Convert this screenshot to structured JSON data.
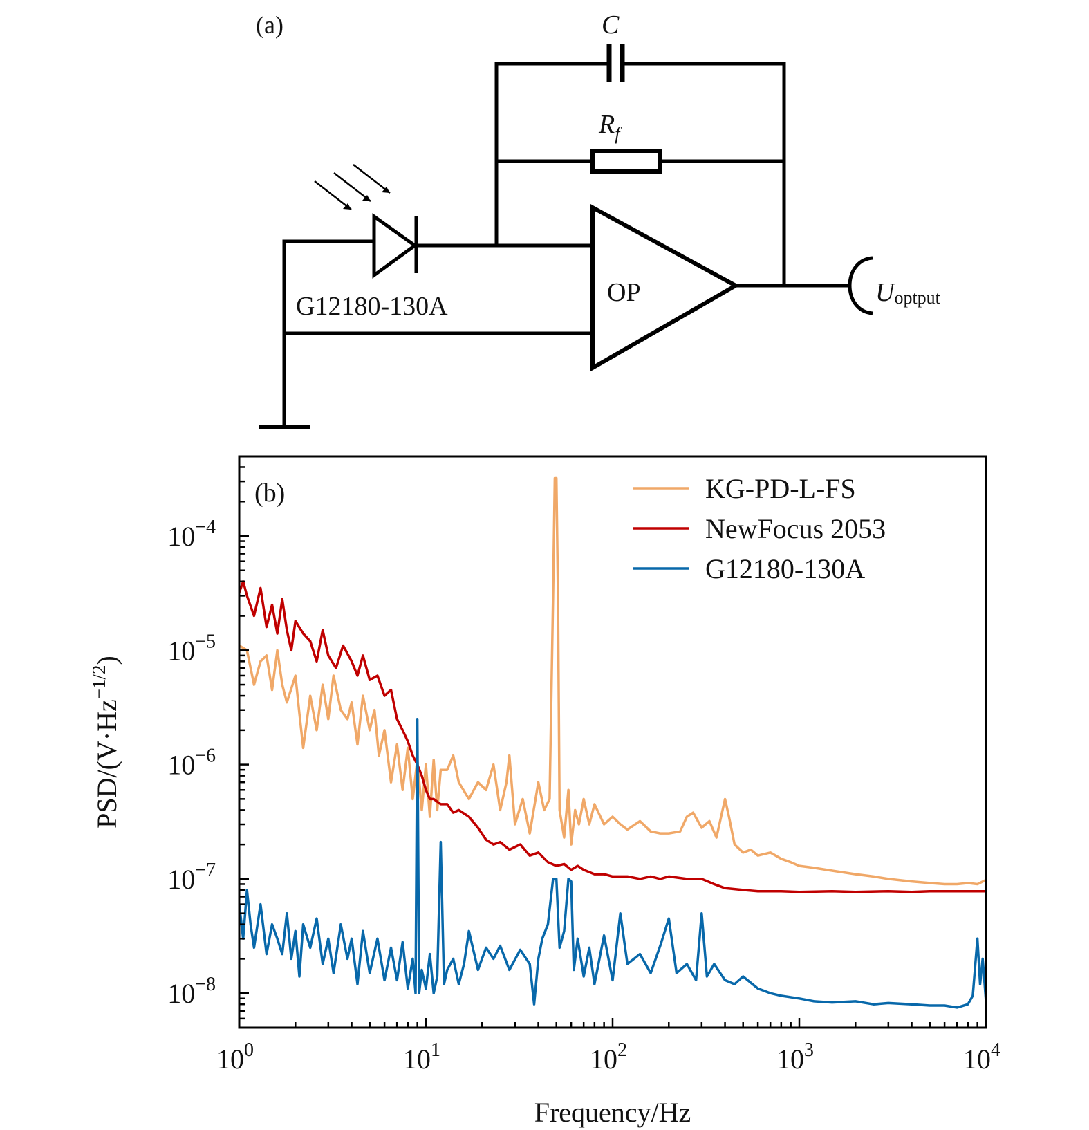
{
  "panel_a": {
    "label": "(a)",
    "capacitor_label": "C",
    "resistor_label_main": "R",
    "resistor_label_sub": "f",
    "photodiode_label": "G12180-130A",
    "opamp_label": "OP",
    "output_label_main": "U",
    "output_label_sub": "optput"
  },
  "chart_data": {
    "type": "line",
    "panel_label": "(b)",
    "title": "",
    "xlabel": "Frequency/Hz",
    "ylabel": "PSD/(V·Hz^(-1/2))",
    "ylabel_parts": {
      "main": "PSD/(V·Hz",
      "sup": "−1/2",
      "close": ")"
    },
    "xscale": "log",
    "yscale": "log",
    "xlim": [
      1,
      10000
    ],
    "ylim": [
      5e-09,
      0.0005
    ],
    "xticks": [
      {
        "value": 1,
        "base": "10",
        "exp": "0"
      },
      {
        "value": 10,
        "base": "10",
        "exp": "1"
      },
      {
        "value": 100,
        "base": "10",
        "exp": "2"
      },
      {
        "value": 1000,
        "base": "10",
        "exp": "3"
      },
      {
        "value": 10000,
        "base": "10",
        "exp": "4"
      }
    ],
    "yticks": [
      {
        "value": 0.0001,
        "base": "10",
        "exp": "−4"
      },
      {
        "value": 1e-05,
        "base": "10",
        "exp": "−5"
      },
      {
        "value": 1e-06,
        "base": "10",
        "exp": "−6"
      },
      {
        "value": 1e-07,
        "base": "10",
        "exp": "−7"
      },
      {
        "value": 1e-08,
        "base": "10",
        "exp": "−8"
      }
    ],
    "grid": false,
    "legend_position": "top-right",
    "series": [
      {
        "name": "KG-PD-L-FS",
        "color": "#f0a868",
        "x": [
          1,
          1.1,
          1.2,
          1.3,
          1.4,
          1.5,
          1.6,
          1.7,
          1.8,
          2.0,
          2.1,
          2.2,
          2.4,
          2.6,
          2.8,
          3.0,
          3.2,
          3.5,
          3.8,
          4.0,
          4.3,
          4.6,
          5.0,
          5.3,
          5.6,
          6.0,
          6.5,
          7.0,
          7.5,
          8.0,
          8.5,
          9.0,
          9.5,
          10,
          10.5,
          11,
          11.5,
          12,
          13,
          14,
          15,
          17,
          19,
          21,
          23,
          25,
          27,
          28,
          30,
          33,
          36,
          40,
          43,
          46,
          48,
          49,
          50,
          51,
          52,
          55,
          58,
          60,
          63,
          66,
          70,
          75,
          80,
          90,
          100,
          110,
          120,
          140,
          160,
          180,
          200,
          230,
          250,
          270,
          300,
          330,
          360,
          400,
          420,
          450,
          500,
          550,
          600,
          700,
          800,
          900,
          1000,
          1200,
          1500,
          2000,
          2500,
          3000,
          4000,
          5000,
          6000,
          7000,
          8000,
          9000,
          10000
        ],
        "values": [
          1.1e-05,
          1e-05,
          5e-06,
          8e-06,
          9e-06,
          4.5e-06,
          1e-05,
          5e-06,
          3.5e-06,
          6e-06,
          2.8e-06,
          1.4e-06,
          4e-06,
          2e-06,
          5e-06,
          2.5e-06,
          6e-06,
          3e-06,
          2.5e-06,
          3.5e-06,
          1.5e-06,
          4e-06,
          2e-06,
          3e-06,
          1.2e-06,
          2e-06,
          7e-07,
          1.5e-06,
          6e-07,
          1.4e-06,
          5e-07,
          1.1e-06,
          4e-07,
          1e-06,
          3.5e-07,
          1.1e-06,
          4e-07,
          9e-07,
          9e-07,
          1.2e-06,
          7e-07,
          5e-07,
          7e-07,
          6e-07,
          1e-06,
          4e-07,
          7e-07,
          1.2e-06,
          3e-07,
          5e-07,
          2.5e-07,
          7e-07,
          4e-07,
          5e-07,
          3e-05,
          0.00032,
          0.00032,
          3e-05,
          4e-07,
          2.3e-07,
          6e-07,
          2e-07,
          4e-07,
          3e-07,
          5e-07,
          3e-07,
          4.5e-07,
          3e-07,
          3.5e-07,
          3e-07,
          2.7e-07,
          3.2e-07,
          2.6e-07,
          2.5e-07,
          2.5e-07,
          2.6e-07,
          3.5e-07,
          3.8e-07,
          2.8e-07,
          3.2e-07,
          2.3e-07,
          5e-07,
          3.5e-07,
          2e-07,
          1.7e-07,
          1.8e-07,
          1.6e-07,
          1.7e-07,
          1.5e-07,
          1.4e-07,
          1.3e-07,
          1.25e-07,
          1.18e-07,
          1.1e-07,
          1.05e-07,
          1e-07,
          9.5e-08,
          9.2e-08,
          9e-08,
          9e-08,
          9.2e-08,
          9e-08,
          9.8e-08
        ]
      },
      {
        "name": "NewFocus 2053",
        "color": "#c00000",
        "x": [
          1,
          1.05,
          1.1,
          1.2,
          1.3,
          1.4,
          1.5,
          1.6,
          1.7,
          1.8,
          1.9,
          2.0,
          2.2,
          2.4,
          2.6,
          2.8,
          3.0,
          3.3,
          3.6,
          4.0,
          4.3,
          4.6,
          5.0,
          5.5,
          6.0,
          6.5,
          7.0,
          7.5,
          8.0,
          8.5,
          9.0,
          9.5,
          10,
          10.5,
          11,
          12,
          13,
          14,
          15,
          17,
          19,
          21,
          23,
          25,
          28,
          32,
          36,
          40,
          45,
          50,
          55,
          60,
          65,
          70,
          80,
          90,
          100,
          120,
          140,
          160,
          180,
          200,
          250,
          300,
          350,
          400,
          500,
          600,
          800,
          1000,
          1500,
          2000,
          3000,
          4000,
          5000,
          7000,
          10000
        ],
        "values": [
          3.2e-05,
          4e-05,
          3e-05,
          2e-05,
          3.5e-05,
          1.6e-05,
          2.5e-05,
          1.4e-05,
          2.8e-05,
          1.5e-05,
          1e-05,
          1.8e-05,
          1.4e-05,
          1.2e-05,
          8e-06,
          1.5e-05,
          9e-06,
          7e-06,
          1.1e-05,
          8e-06,
          6e-06,
          9e-06,
          5.5e-06,
          6e-06,
          4e-06,
          4.5e-06,
          2.5e-06,
          2e-06,
          1.6e-06,
          1.2e-06,
          1e-06,
          8e-07,
          6e-07,
          5e-07,
          5e-07,
          4.5e-07,
          4.5e-07,
          3.8e-07,
          4e-07,
          3.5e-07,
          2.8e-07,
          2.2e-07,
          2e-07,
          2.1e-07,
          1.8e-07,
          2e-07,
          1.6e-07,
          1.7e-07,
          1.4e-07,
          1.3e-07,
          1.35e-07,
          1.2e-07,
          1.3e-07,
          1.2e-07,
          1.1e-07,
          1.1e-07,
          1.05e-07,
          1.05e-07,
          1e-07,
          1.05e-07,
          1e-07,
          1.05e-07,
          1e-07,
          1e-07,
          9e-08,
          8.3e-08,
          8e-08,
          7.8e-08,
          7.8e-08,
          7.7e-08,
          7.8e-08,
          7.7e-08,
          7.8e-08,
          7.7e-08,
          7.8e-08,
          7.8e-08,
          7.8e-08
        ]
      },
      {
        "name": "G12180-130A",
        "color": "#0868aa",
        "x": [
          1,
          1.05,
          1.1,
          1.15,
          1.2,
          1.3,
          1.4,
          1.5,
          1.6,
          1.7,
          1.8,
          1.9,
          2.0,
          2.1,
          2.2,
          2.4,
          2.6,
          2.8,
          3.0,
          3.2,
          3.5,
          3.8,
          4.0,
          4.3,
          4.6,
          5.0,
          5.5,
          6.0,
          6.5,
          7.0,
          7.5,
          8.0,
          8.5,
          8.8,
          9.0,
          9.2,
          9.5,
          10,
          10.5,
          11,
          11.5,
          12,
          12.5,
          13,
          14,
          15,
          16,
          17,
          19,
          21,
          23,
          25,
          28,
          32,
          36,
          38,
          40,
          42,
          45,
          48,
          50,
          52,
          55,
          58,
          60,
          62,
          65,
          70,
          75,
          80,
          90,
          100,
          110,
          120,
          140,
          160,
          180,
          200,
          220,
          250,
          280,
          300,
          320,
          350,
          400,
          450,
          500,
          600,
          700,
          800,
          1000,
          1200,
          1500,
          2000,
          2500,
          3000,
          4000,
          5000,
          6000,
          7000,
          8000,
          8500,
          9000,
          9300,
          9600,
          10000
        ],
        "values": [
          6e-08,
          3e-08,
          8e-08,
          4e-08,
          2.5e-08,
          6e-08,
          2.2e-08,
          4e-08,
          3e-08,
          2.2e-08,
          5e-08,
          2e-08,
          3.5e-08,
          1.4e-08,
          4e-08,
          2.5e-08,
          4.5e-08,
          1.8e-08,
          3e-08,
          1.5e-08,
          4e-08,
          2e-08,
          3e-08,
          1.2e-08,
          3.5e-08,
          1.5e-08,
          3e-08,
          1.3e-08,
          2.5e-08,
          1.3e-08,
          2.8e-08,
          1.1e-08,
          2e-08,
          1e-08,
          2.5e-06,
          1e-08,
          1.6e-08,
          1.1e-08,
          2.2e-08,
          1e-08,
          1.4e-08,
          2.1e-07,
          1.2e-08,
          1.6e-08,
          2e-08,
          1.2e-08,
          1.8e-08,
          3.5e-08,
          1.6e-08,
          2.5e-08,
          2e-08,
          2.6e-08,
          1.6e-08,
          2.4e-08,
          1.8e-08,
          8e-09,
          2e-08,
          3e-08,
          4e-08,
          1e-07,
          1e-07,
          2.5e-08,
          3.5e-08,
          1e-07,
          9.5e-08,
          1.6e-08,
          3e-08,
          1.4e-08,
          2.5e-08,
          1.2e-08,
          3.2e-08,
          1.3e-08,
          5e-08,
          1.8e-08,
          2.2e-08,
          1.5e-08,
          2.6e-08,
          4.5e-08,
          1.5e-08,
          1.8e-08,
          1.3e-08,
          5e-08,
          1.4e-08,
          1.8e-08,
          1.3e-08,
          1.2e-08,
          1.4e-08,
          1.1e-08,
          1e-08,
          9.5e-09,
          9e-09,
          8.5e-09,
          8.3e-09,
          8.5e-09,
          8e-09,
          8.2e-09,
          8e-09,
          7.8e-09,
          7.8e-09,
          7.5e-09,
          8e-09,
          9.5e-09,
          3e-08,
          1.2e-08,
          2e-08,
          8.5e-09
        ]
      }
    ]
  }
}
